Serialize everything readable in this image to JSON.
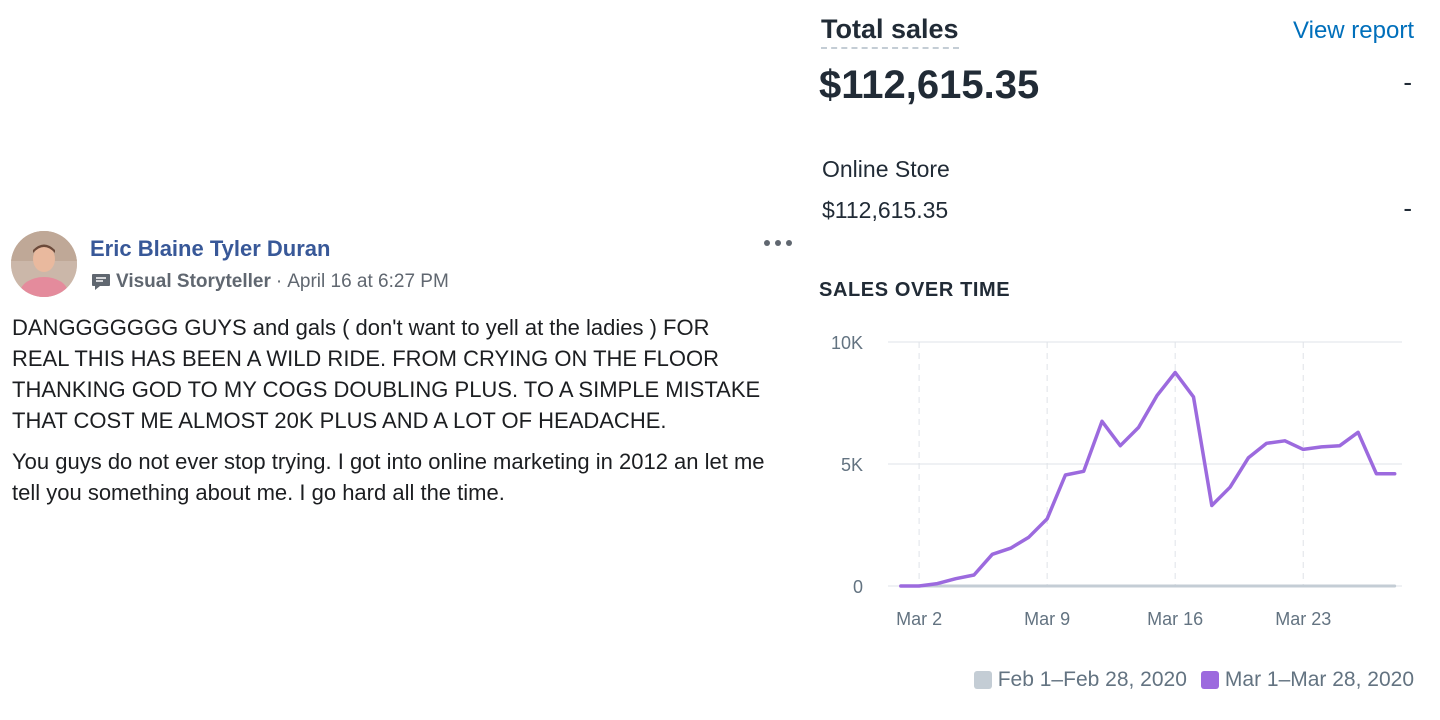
{
  "post": {
    "author": "Eric Blaine Tyler Duran",
    "role": "Visual Storyteller",
    "separator": "·",
    "timestamp": "April 16 at 6:27 PM",
    "paragraphs": [
      "DANGGGGGGG GUYS and gals ( don't want to yell at the ladies ) FOR REAL THIS HAS BEEN A WILD RIDE. FROM CRYING ON THE FLOOR THANKING GOD TO MY COGS DOUBLING PLUS. TO A SIMPLE MISTAKE THAT COST ME ALMOST 20K PLUS AND A LOT OF HEADACHE.",
      "You guys do not ever stop trying. I got into online marketing in 2012 an let me tell you something about me. I go hard all the time."
    ],
    "icons": {
      "avatar": "profile-photo",
      "badge": "speech-bubble-icon",
      "more": "more-options-icon"
    }
  },
  "sales": {
    "title": "Total sales",
    "view_report": "View report",
    "total": "$112,615.35",
    "total_change": "-",
    "channel": {
      "name": "Online Store",
      "value": "$112,615.35",
      "change": "-"
    },
    "chart_heading": "SALES OVER TIME",
    "colors": {
      "link": "#006fbb",
      "current": "#9c6ade",
      "previous": "#c4cdd5",
      "text": "#212b36",
      "muted": "#637381"
    }
  },
  "chart_data": {
    "type": "line",
    "title": "SALES OVER TIME",
    "x_ticks": [
      "Mar 2",
      "Mar 9",
      "Mar 16",
      "Mar 23"
    ],
    "y_ticks": [
      "0",
      "5K",
      "10K"
    ],
    "ylim": [
      0,
      10000
    ],
    "grid": true,
    "legend_position": "bottom-right",
    "series": [
      {
        "name": "Feb 1–Feb 28, 2020",
        "color": "#c4cdd5",
        "x": [
          1,
          28
        ],
        "values": [
          0,
          0
        ]
      },
      {
        "name": "Mar 1–Mar 28, 2020",
        "color": "#9c6ade",
        "x": [
          1,
          2,
          3,
          4,
          5,
          6,
          7,
          8,
          9,
          10,
          11,
          12,
          13,
          14,
          15,
          16,
          17,
          18,
          19,
          20,
          21,
          22,
          23,
          24,
          25,
          26,
          27,
          28
        ],
        "values": [
          0,
          0,
          100,
          300,
          450,
          1300,
          1550,
          2000,
          2750,
          4550,
          4700,
          6750,
          5750,
          6500,
          7800,
          8750,
          7750,
          3300,
          4050,
          5250,
          5850,
          5950,
          5600,
          5700,
          5750,
          6300,
          4600,
          4600
        ]
      }
    ]
  }
}
